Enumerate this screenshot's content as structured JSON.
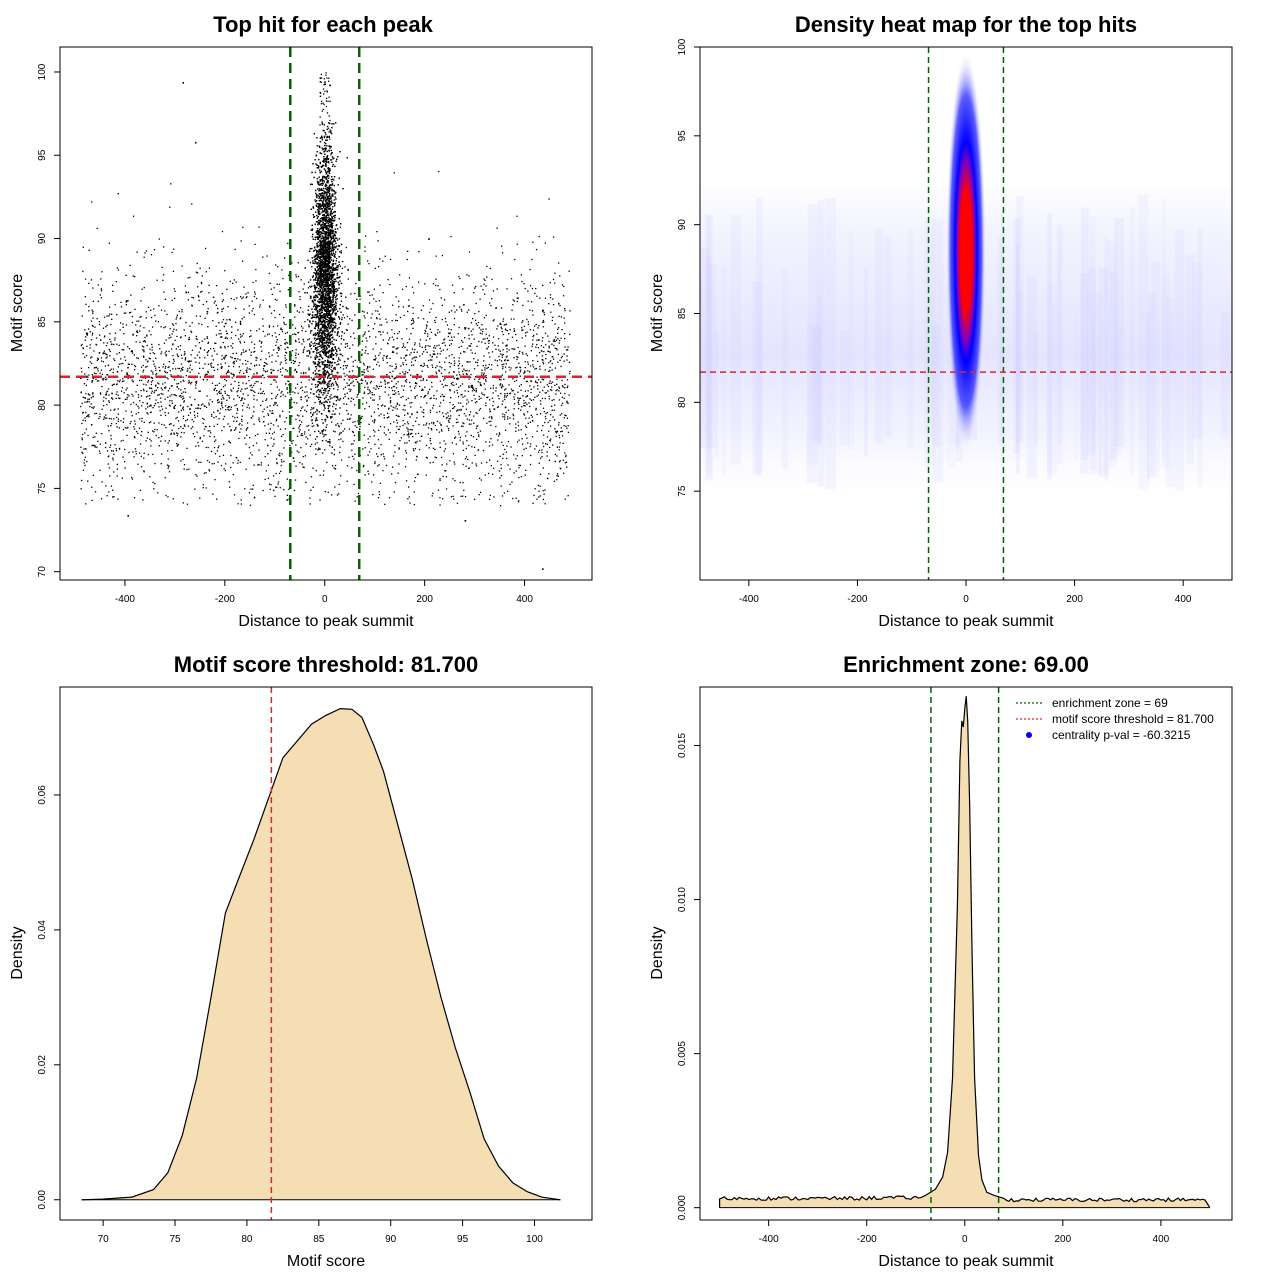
{
  "chart_data": [
    {
      "id": "p1",
      "type": "scatter",
      "title": "Top hit for each peak",
      "xlabel": "Distance to peak summit",
      "ylabel": "Motif score",
      "xlim": [
        -530,
        535
      ],
      "ylim": [
        69.5,
        101.5
      ],
      "xticks": [
        -400,
        -200,
        0,
        200,
        400
      ],
      "yticks": [
        70,
        75,
        80,
        85,
        90,
        95,
        100
      ],
      "vlines": [
        {
          "x": -69,
          "color": "#006400"
        },
        {
          "x": 69,
          "color": "#006400"
        }
      ],
      "hlines": [
        {
          "y": 81.7,
          "color": "#d62728"
        }
      ],
      "background_points": {
        "x_range": [
          -490,
          490
        ],
        "y_range": [
          74,
          95
        ],
        "center": 81.5
      },
      "central_points": {
        "x_center": 0,
        "x_spread": 16,
        "y_range": [
          77,
          100
        ]
      },
      "outliers": [
        {
          "x": -285,
          "y": 99.4
        },
        {
          "x": -260,
          "y": 95.8
        },
        {
          "x": 280,
          "y": 73.1
        },
        {
          "x": 435,
          "y": 70.2
        },
        {
          "x": -395,
          "y": 73.4
        }
      ]
    },
    {
      "id": "p2",
      "type": "heatmap",
      "title": "Density heat map for the top hits",
      "xlabel": "Distance to peak summit",
      "ylabel": "Motif score",
      "xlim": [
        -490,
        490
      ],
      "ylim": [
        70,
        100
      ],
      "xticks": [
        -400,
        -200,
        0,
        200,
        400
      ],
      "yticks": [
        75,
        80,
        85,
        90,
        95,
        100
      ],
      "vlines": [
        {
          "x": -69,
          "color": "#006400"
        },
        {
          "x": 69,
          "color": "#006400"
        }
      ],
      "hlines": [
        {
          "y": 81.7,
          "color": "#d62728"
        }
      ],
      "hotspot": {
        "x": 0,
        "y": 88.5,
        "color_low": "#0000ff",
        "color_high": "#ff0000"
      }
    },
    {
      "id": "p3",
      "type": "area",
      "title": "Motif score threshold: 81.700",
      "xlabel": "Motif score",
      "ylabel": "Density",
      "xlim": [
        67,
        104
      ],
      "ylim": [
        -0.003,
        0.076
      ],
      "xticks": [
        70,
        75,
        80,
        85,
        90,
        95,
        100
      ],
      "yticks": [
        0.0,
        0.02,
        0.04,
        0.06
      ],
      "ytick_labels": [
        "0.00",
        "0.02",
        "0.04",
        "0.06"
      ],
      "fill": "#f5deb3",
      "vlines": [
        {
          "x": 81.7,
          "color": "#d62728"
        }
      ],
      "x": [
        68.5,
        70,
        72,
        73.5,
        74.5,
        75.5,
        76.5,
        77.5,
        78.5,
        79.5,
        80.5,
        81.5,
        82.5,
        83.5,
        84.5,
        85.5,
        86.5,
        87.3,
        88,
        88.8,
        89.5,
        90.5,
        91.5,
        92.5,
        93.5,
        94.5,
        95.5,
        96.5,
        97.5,
        98.5,
        99.5,
        100.5,
        101.8
      ],
      "y": [
        0.0,
        0.0001,
        0.0004,
        0.0015,
        0.004,
        0.0095,
        0.018,
        0.03,
        0.0425,
        0.048,
        0.0535,
        0.0595,
        0.0655,
        0.068,
        0.0705,
        0.0718,
        0.0728,
        0.0727,
        0.0715,
        0.0675,
        0.0635,
        0.0555,
        0.0475,
        0.0385,
        0.03,
        0.0225,
        0.016,
        0.009,
        0.005,
        0.0025,
        0.0012,
        0.0004,
        0.0
      ]
    },
    {
      "id": "p4",
      "type": "area",
      "title": "Enrichment zone: 69.00",
      "xlabel": "Distance to peak summit",
      "ylabel": "Density",
      "xlim": [
        -540,
        545
      ],
      "ylim": [
        -0.0004,
        0.0169
      ],
      "xticks": [
        -400,
        -200,
        0,
        200,
        400
      ],
      "yticks": [
        0.0,
        0.005,
        0.01,
        0.015
      ],
      "ytick_labels": [
        "0.000",
        "0.005",
        "0.010",
        "0.015"
      ],
      "fill": "#f5deb3",
      "vlines": [
        {
          "x": -69,
          "color": "#006400"
        },
        {
          "x": 69,
          "color": "#006400"
        }
      ],
      "baseline_level": 0.0003,
      "x_range": [
        -500,
        500
      ],
      "peak_x": [
        -80,
        -60,
        -45,
        -35,
        -25,
        -15,
        -10,
        -6,
        -3,
        0,
        3,
        6,
        10,
        15,
        20,
        28,
        35,
        45,
        60,
        80
      ],
      "peak_y": [
        0.0004,
        0.0006,
        0.001,
        0.0018,
        0.0042,
        0.0098,
        0.0145,
        0.0158,
        0.0156,
        0.0162,
        0.0166,
        0.0158,
        0.013,
        0.0082,
        0.0042,
        0.0017,
        0.0009,
        0.0005,
        0.0004,
        0.0003
      ],
      "legend": {
        "position": "top-right",
        "entries": [
          {
            "label": "enrichment zone = 69",
            "symbol": "dotted-line",
            "color": "#006400"
          },
          {
            "label": "motif score threshold = 81.700",
            "symbol": "dotted-line",
            "color": "#d62728"
          },
          {
            "label": "centrality p-val = -60.3215",
            "symbol": "dot",
            "color": "#0000ff"
          }
        ]
      }
    }
  ]
}
